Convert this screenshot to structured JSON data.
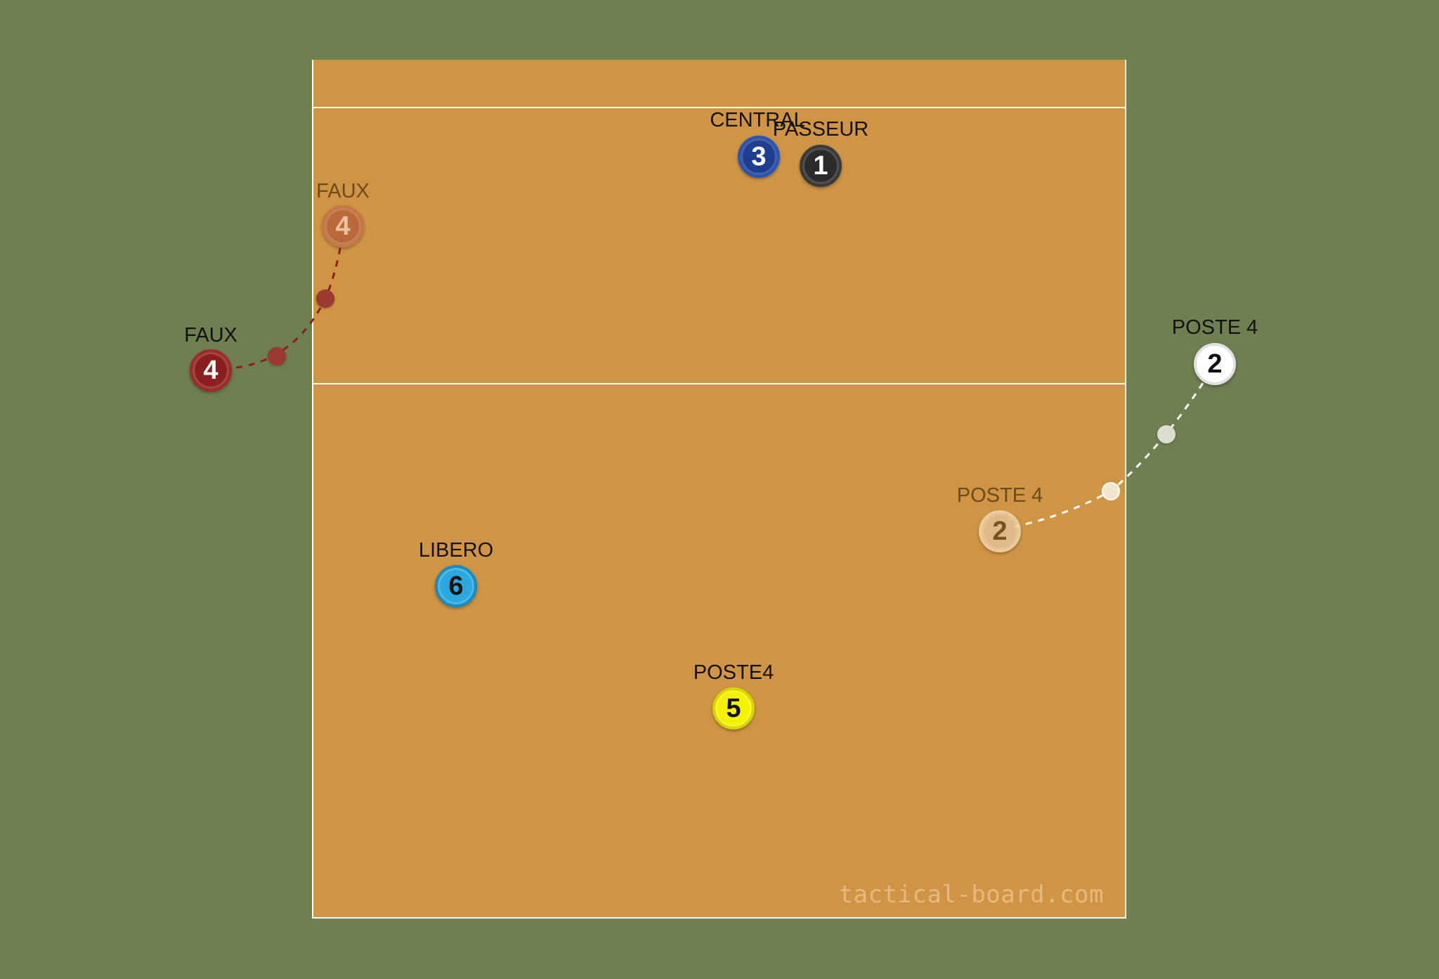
{
  "watermark": "tactical-board.com",
  "players": [
    {
      "id": "central",
      "label": "CENTRAL",
      "number": "3",
      "fill": "#1e3f91",
      "text": "#ffffff",
      "ring": "#2a55b8",
      "ghost": false
    },
    {
      "id": "passeur",
      "label": "PASSEUR",
      "number": "1",
      "fill": "#2b2b2b",
      "text": "#ffffff",
      "ring": "#3a3a3a",
      "ghost": false
    },
    {
      "id": "faux-ghost",
      "label": "FAUX",
      "number": "4",
      "fill": "#b8643a",
      "text": "#f3c9a8",
      "ring": "#c57446",
      "ghost": true
    },
    {
      "id": "faux",
      "label": "FAUX",
      "number": "4",
      "fill": "#8b1f1f",
      "text": "#ffffff",
      "ring": "#a02a2a",
      "ghost": false
    },
    {
      "id": "poste4-right",
      "label": "POSTE 4",
      "number": "2",
      "fill": "#ffffff",
      "text": "#111111",
      "ring": "#e0e0e0",
      "ghost": false
    },
    {
      "id": "poste4-ghost",
      "label": "POSTE 4",
      "number": "2",
      "fill": "#e2bf8f",
      "text": "#6b4a1e",
      "ring": "#efd2a8",
      "ghost": true
    },
    {
      "id": "libero",
      "label": "LIBERO",
      "number": "6",
      "fill": "#29a9e0",
      "text": "#111111",
      "ring": "#1b8cc0",
      "ghost": false
    },
    {
      "id": "poste4-center",
      "label": "POSTE4",
      "number": "5",
      "fill": "#f5f200",
      "text": "#111111",
      "ring": "#d8d400",
      "ghost": false
    }
  ],
  "movements": [
    {
      "id": "faux-move",
      "color": "#8b1f1f"
    },
    {
      "id": "poste4-move",
      "color": "#ffffff"
    }
  ]
}
